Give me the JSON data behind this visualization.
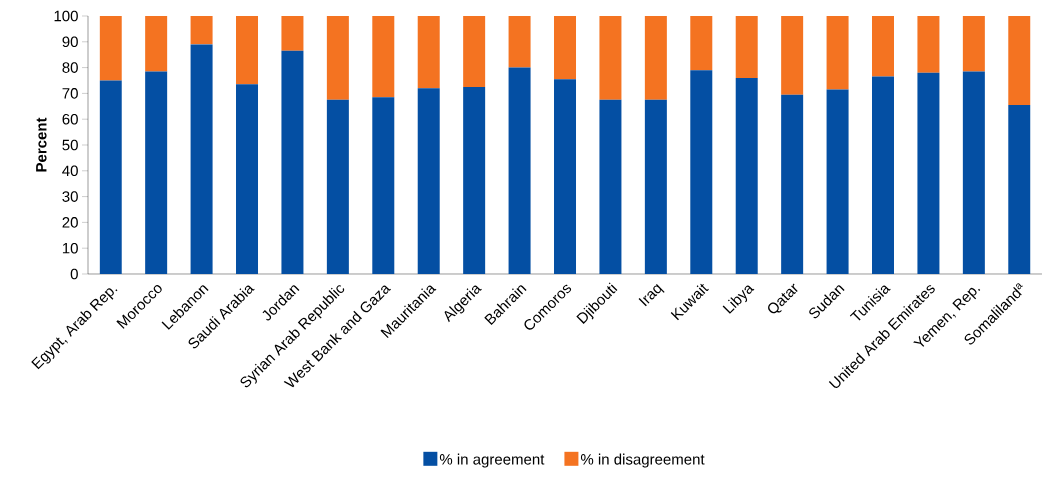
{
  "chart_data": {
    "type": "bar",
    "stacked": true,
    "ylabel": "Percent",
    "ylim": [
      0,
      100
    ],
    "yticks": [
      0,
      10,
      20,
      30,
      40,
      50,
      60,
      70,
      80,
      90,
      100
    ],
    "legend": "bottom",
    "categories": [
      "Egypt, Arab Rep.",
      "Morocco",
      "Lebanon",
      "Saudi Arabia",
      "Jordan",
      "Syrian Arab Republic",
      "West Bank and Gaza",
      "Mauritania",
      "Algeria",
      "Bahrain",
      "Comoros",
      "Djibouti",
      "Iraq",
      "Kuwait",
      "Libya",
      "Qatar",
      "Sudan",
      "Tunisia",
      "United Arab Emirates",
      "Yemen, Rep.",
      "Somaliland$^{a}$"
    ],
    "series": [
      {
        "name": "% in agreement",
        "color": "#044fa3",
        "values": [
          75,
          78.5,
          89,
          73.5,
          86.5,
          67.5,
          68.5,
          72,
          72.5,
          80,
          75.5,
          67.5,
          67.5,
          79,
          76,
          69.5,
          71.5,
          76.5,
          78,
          78.5,
          65.5
        ]
      },
      {
        "name": "% in disagreement",
        "color": "#f47321",
        "values": [
          25,
          21.5,
          11,
          26.5,
          13.5,
          32.5,
          31.5,
          28,
          27.5,
          20,
          24.5,
          32.5,
          32.5,
          21,
          24,
          30.5,
          28.5,
          23.5,
          22,
          21.5,
          34.5
        ]
      }
    ]
  }
}
